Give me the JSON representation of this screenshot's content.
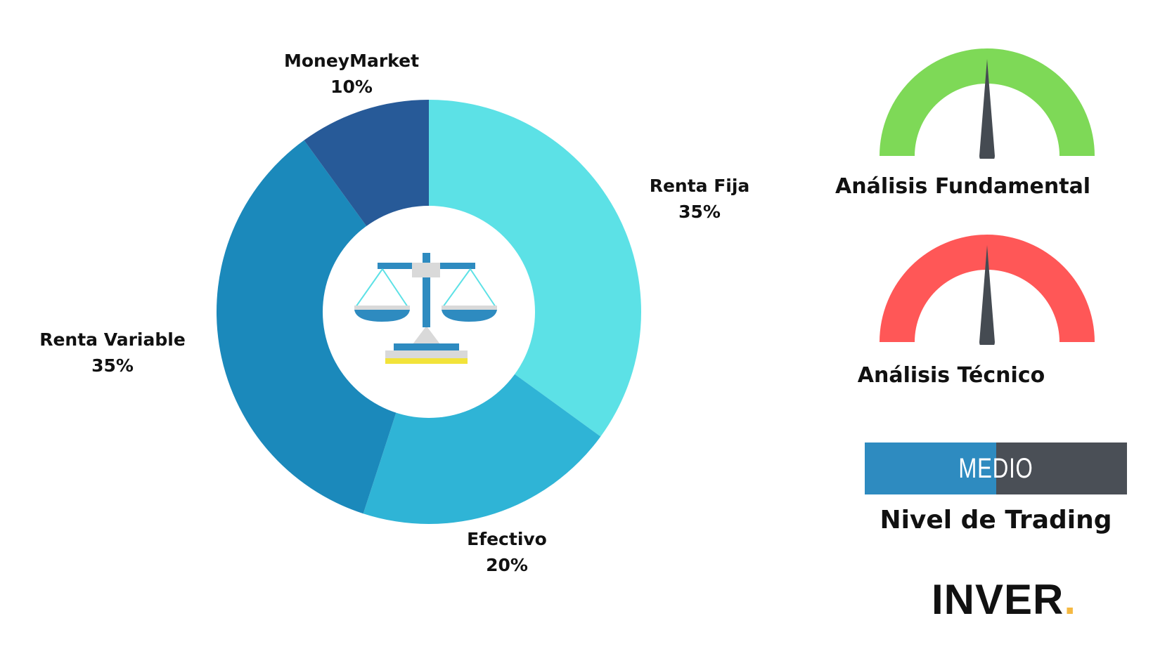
{
  "chart_data": {
    "type": "pie",
    "categories": [
      "Renta Fija",
      "Efectivo",
      "Renta Variable",
      "MoneyMarket"
    ],
    "values": [
      35,
      20,
      35,
      10
    ],
    "labels": [
      "35%",
      "20%",
      "35%",
      "10%"
    ],
    "colors": [
      "#5ce1e6",
      "#2fb4d6",
      "#1b89bb",
      "#275a98"
    ],
    "title": "",
    "center_icon": "balance-scale-icon"
  },
  "gauges": [
    {
      "title": "Análisis Fundamental",
      "color": "#7ed957",
      "level": 0.5
    },
    {
      "title": "Análisis Técnico",
      "color": "#ff5757",
      "level": 0.5
    }
  ],
  "trading": {
    "value": "MEDIO",
    "title": "Nivel de Trading",
    "level": 0.5,
    "fill_color": "#2e8bc0",
    "rest_color": "#4a4f56"
  },
  "logo": {
    "text": "INVER",
    "dot": "."
  },
  "colors": {
    "needle": "#454b52",
    "logo_dot": "#f5b942"
  }
}
